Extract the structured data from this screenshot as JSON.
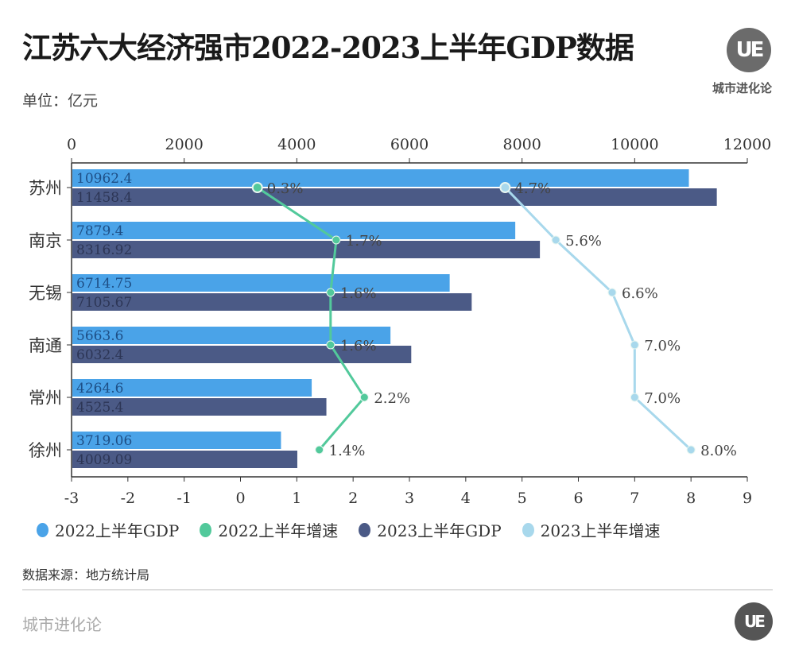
{
  "header": {
    "title": "江苏六大经济强市2022-2023上半年GDP数据",
    "unit": "单位：亿元"
  },
  "brand": {
    "logo_letters": "UE",
    "name": "城市进化论"
  },
  "footer": {
    "source": "数据来源：地方统计局",
    "brand": "城市进化论"
  },
  "colors": {
    "gdp2022": "#4aa3e8",
    "gdp2023": "#4b5a86",
    "growth2022": "#52c99b",
    "growth2023": "#a8d8ec"
  },
  "chart_data": {
    "type": "bar",
    "title": "江苏六大经济强市2022-2023上半年GDP数据",
    "categories": [
      "苏州",
      "南京",
      "无锡",
      "南通",
      "常州",
      "徐州"
    ],
    "series": [
      {
        "name": "2022上半年GDP",
        "type": "bar",
        "axis": "top",
        "values": [
          10962.4,
          7879.4,
          6714.75,
          5663.6,
          4264.6,
          3719.06
        ],
        "labels": [
          "10962.4",
          "7879.4",
          "6714.75",
          "5663.6",
          "4264.6",
          "3719.06"
        ]
      },
      {
        "name": "2022上半年增速",
        "type": "line",
        "axis": "bottom",
        "values": [
          0.3,
          1.7,
          1.6,
          1.6,
          2.2,
          1.4
        ],
        "labels": [
          "0.3%",
          "1.7%",
          "1.6%",
          "1.6%",
          "2.2%",
          "1.4%"
        ]
      },
      {
        "name": "2023上半年GDP",
        "type": "bar",
        "axis": "top",
        "values": [
          11458.4,
          8316.92,
          7105.67,
          6032.4,
          4525.4,
          4009.09
        ],
        "labels": [
          "11458.4",
          "8316.92",
          "7105.67",
          "6032.4",
          "4525.4",
          "4009.09"
        ]
      },
      {
        "name": "2023上半年增速",
        "type": "line",
        "axis": "bottom",
        "values": [
          4.7,
          5.6,
          6.6,
          7.0,
          7.0,
          8.0
        ],
        "labels": [
          "4.7%",
          "5.6%",
          "6.6%",
          "7.0%",
          "7.0%",
          "8.0%"
        ]
      }
    ],
    "top_axis": {
      "range": [
        0,
        12000
      ],
      "ticks": [
        "0",
        "2000",
        "4000",
        "6000",
        "8000",
        "10000",
        "12000"
      ]
    },
    "bottom_axis": {
      "range": [
        -3,
        9
      ],
      "ticks": [
        "-3",
        "-2",
        "-1",
        "0",
        "1",
        "2",
        "3",
        "4",
        "5",
        "6",
        "7",
        "8",
        "9"
      ]
    },
    "legend_position": "bottom",
    "grid": false
  }
}
